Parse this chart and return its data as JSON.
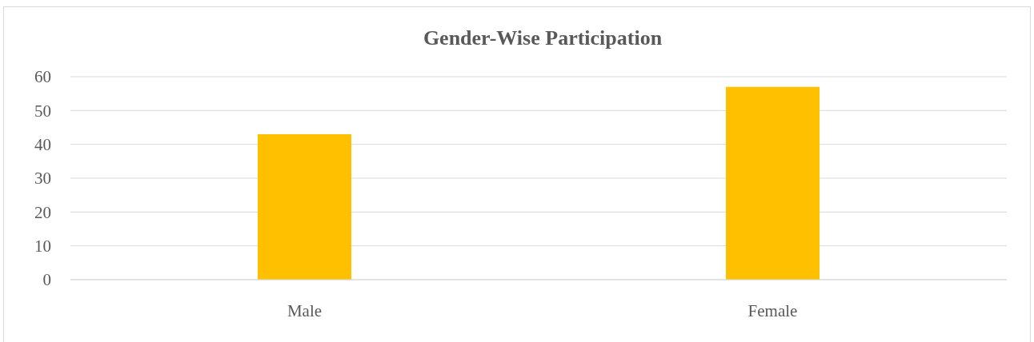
{
  "chart_data": {
    "type": "bar",
    "title": "Gender-Wise Participation",
    "categories": [
      "Male",
      "Female"
    ],
    "values": [
      43,
      57
    ],
    "color": "#ffc000",
    "ylim": [
      0,
      60
    ],
    "yticks": [
      0,
      10,
      20,
      30,
      40,
      50,
      60
    ],
    "grid": "y"
  }
}
